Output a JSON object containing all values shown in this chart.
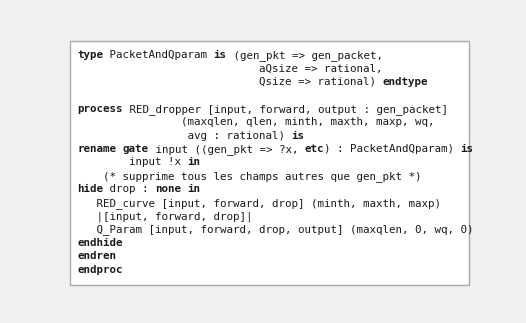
{
  "background_color": "#f0f0f0",
  "border_color": "#aaaaaa",
  "figsize": [
    5.26,
    3.23
  ],
  "dpi": 100,
  "lines": [
    [
      {
        "t": "type",
        "b": true
      },
      {
        "t": " PacketAndQparam ",
        "b": false
      },
      {
        "t": "is",
        "b": true
      },
      {
        "t": " (gen_pkt => gen_packet,",
        "b": false
      }
    ],
    [
      {
        "t": "                            aQsize => rational,",
        "b": false
      }
    ],
    [
      {
        "t": "                            Qsize => rational) ",
        "b": false
      },
      {
        "t": "endtype",
        "b": true
      }
    ],
    [],
    [
      {
        "t": "process",
        "b": true
      },
      {
        "t": " RED_dropper [input, forward, output : gen_packet]",
        "b": false
      }
    ],
    [
      {
        "t": "                (maxqlen, qlen, minth, maxth, maxp, wq,",
        "b": false
      }
    ],
    [
      {
        "t": "                 avg : rational) ",
        "b": false
      },
      {
        "t": "is",
        "b": true
      }
    ],
    [
      {
        "t": "rename",
        "b": true
      },
      {
        "t": " ",
        "b": false
      },
      {
        "t": "gate",
        "b": true
      },
      {
        "t": " input ((gen_pkt => ?x, ",
        "b": false
      },
      {
        "t": "etc",
        "b": true
      },
      {
        "t": ") : PacketAndQparam) ",
        "b": false
      },
      {
        "t": "is",
        "b": true
      }
    ],
    [
      {
        "t": "        input !x ",
        "b": false
      },
      {
        "t": "in",
        "b": true
      }
    ],
    [
      {
        "t": "    (* supprime tous les champs autres que gen_pkt *)",
        "b": false
      }
    ],
    [
      {
        "t": "hide",
        "b": true
      },
      {
        "t": " drop : ",
        "b": false
      },
      {
        "t": "none",
        "b": true
      },
      {
        "t": " ",
        "b": false
      },
      {
        "t": "in",
        "b": true
      }
    ],
    [
      {
        "t": "   RED_curve [input, forward, drop] (minth, maxth, maxp)",
        "b": false
      }
    ],
    [
      {
        "t": "   |[input, forward, drop]|",
        "b": false
      }
    ],
    [
      {
        "t": "   Q_Param [input, forward, drop, output] (maxqlen, 0, wq, 0)",
        "b": false
      }
    ],
    [
      {
        "t": "endhide",
        "b": true
      }
    ],
    [
      {
        "t": "endren",
        "b": true
      }
    ],
    [
      {
        "t": "endproc",
        "b": true
      }
    ]
  ],
  "font_size": 7.8,
  "text_color": "#1a1a1a"
}
